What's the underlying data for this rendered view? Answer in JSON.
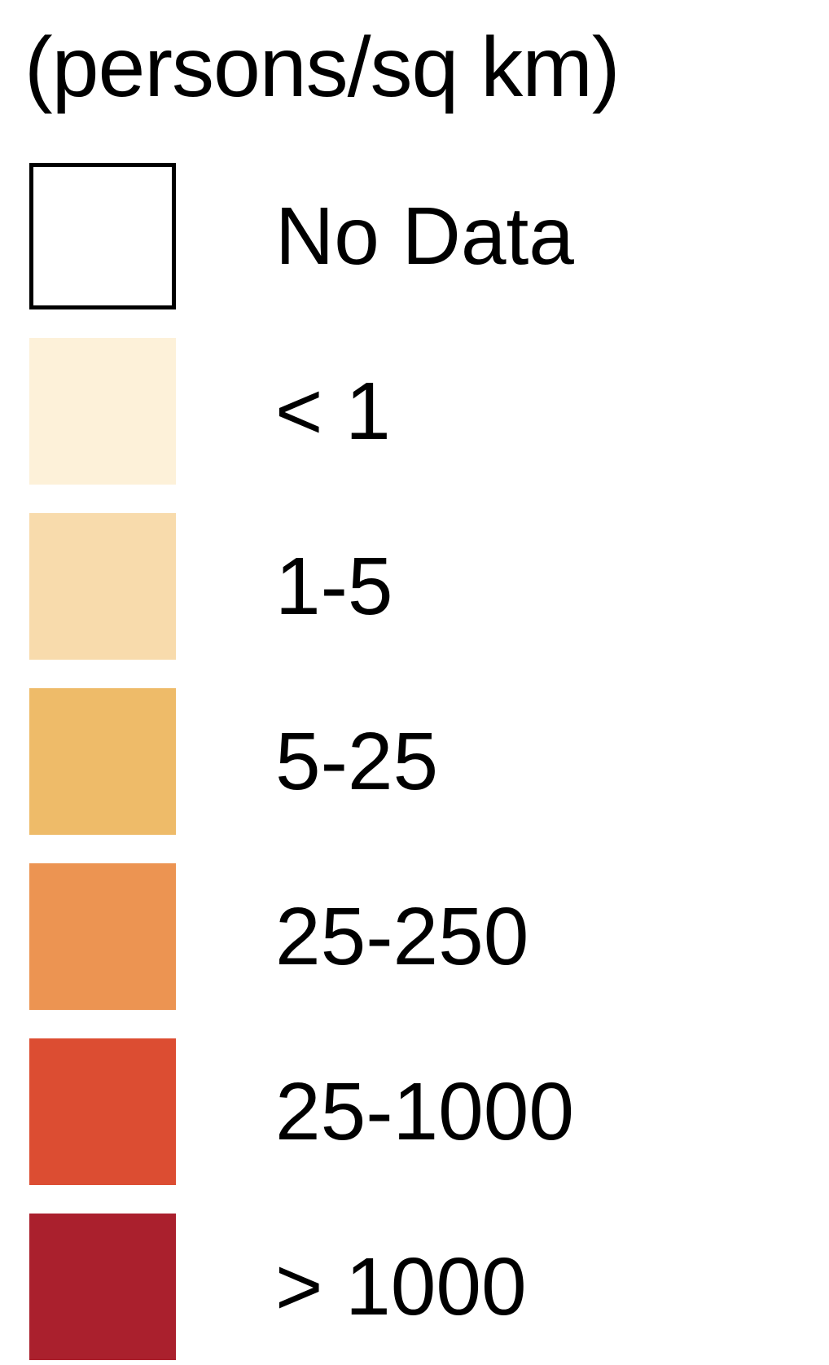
{
  "legend": {
    "title": "(persons/sq km)",
    "items": [
      {
        "label": "No Data",
        "color": "#ffffff",
        "outlined": true
      },
      {
        "label": "< 1",
        "color": "#fdf1d9",
        "outlined": false
      },
      {
        "label": "1-5",
        "color": "#f8dbac",
        "outlined": false
      },
      {
        "label": "5-25",
        "color": "#eebb69",
        "outlined": false
      },
      {
        "label": "25-250",
        "color": "#ec9452",
        "outlined": false
      },
      {
        "label": "25-1000",
        "color": "#dc4d32",
        "outlined": false
      },
      {
        "label": "> 1000",
        "color": "#aa202d",
        "outlined": false
      }
    ]
  }
}
